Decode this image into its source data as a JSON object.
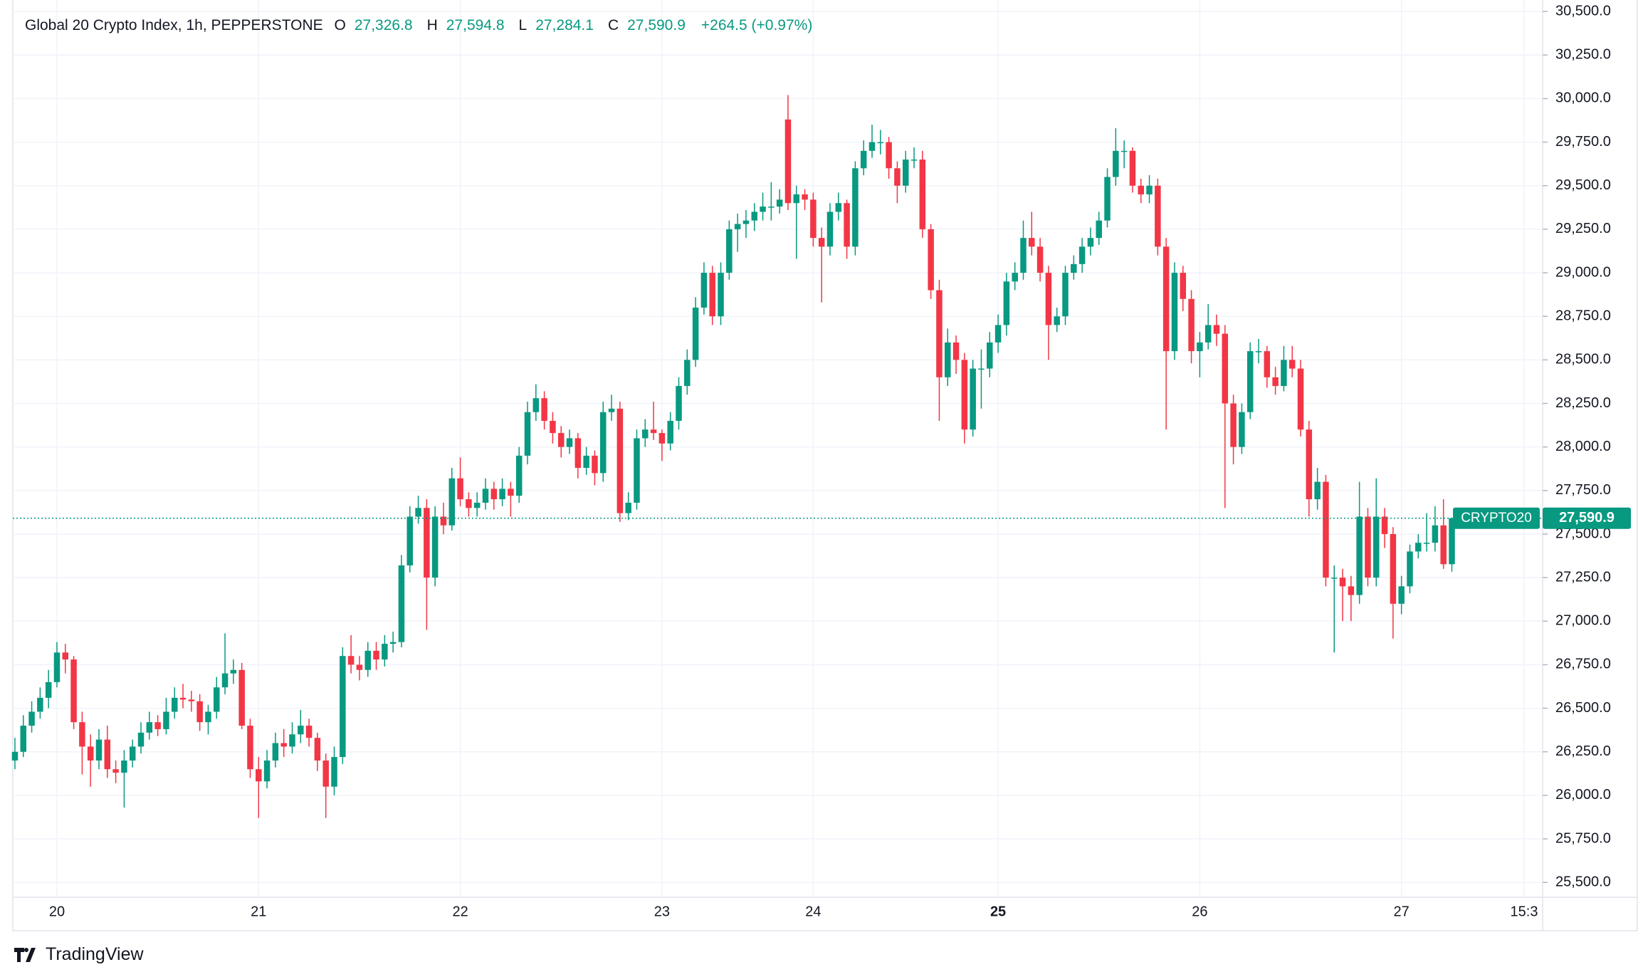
{
  "chart_data": {
    "type": "candlestick",
    "title": "Global 20 Crypto Index, 1h, PEPPERSTONE",
    "ohlc_legend": [
      {
        "key": "O",
        "label": "27,326.8"
      },
      {
        "key": "H",
        "label": "27,594.8"
      },
      {
        "key": "L",
        "label": "27,284.1"
      },
      {
        "key": "C",
        "label": "27,590.9"
      }
    ],
    "change_label": "+264.5 (+0.97%)",
    "price_tag": {
      "name": "CRYPTO20",
      "label": "27,590.9"
    },
    "brand": "TradingView",
    "up_color": "#089981",
    "down_color": "#f23645",
    "grid": true,
    "xlim": [
      -0.25,
      181.8
    ],
    "xticks": [
      {
        "value": 5,
        "label": "20"
      },
      {
        "value": 29,
        "label": "21"
      },
      {
        "value": 53,
        "label": "22"
      },
      {
        "value": 77,
        "label": "23"
      },
      {
        "value": 95,
        "label": "24"
      },
      {
        "value": 117,
        "label": "25",
        "bold": true
      },
      {
        "value": 141,
        "label": "26"
      },
      {
        "value": 165,
        "label": "27"
      },
      {
        "value": 179.6,
        "label": "15:3"
      }
    ],
    "ylim": [
      25415,
      30566
    ],
    "yticks": [
      {
        "value": 25500,
        "label": "25,500.0"
      },
      {
        "value": 25750,
        "label": "25,750.0"
      },
      {
        "value": 26000,
        "label": "26,000.0"
      },
      {
        "value": 26250,
        "label": "26,250.0"
      },
      {
        "value": 26500,
        "label": "26,500.0"
      },
      {
        "value": 26750,
        "label": "26,750.0"
      },
      {
        "value": 27000,
        "label": "27,000.0"
      },
      {
        "value": 27250,
        "label": "27,250.0"
      },
      {
        "value": 27500,
        "label": "27,500.0"
      },
      {
        "value": 27750,
        "label": "27,750.0"
      },
      {
        "value": 28000,
        "label": "28,000.0"
      },
      {
        "value": 28250,
        "label": "28,250.0"
      },
      {
        "value": 28500,
        "label": "28,500.0"
      },
      {
        "value": 28750,
        "label": "28,750.0"
      },
      {
        "value": 29000,
        "label": "29,000.0"
      },
      {
        "value": 29250,
        "label": "29,250.0"
      },
      {
        "value": 29500,
        "label": "29,500.0"
      },
      {
        "value": 29750,
        "label": "29,750.0"
      },
      {
        "value": 30000,
        "label": "30,000.0"
      },
      {
        "value": 30250,
        "label": "30,250.0"
      },
      {
        "value": 30500,
        "label": "30,500.0"
      }
    ],
    "candles": [
      [
        26200,
        26330,
        26150,
        26250
      ],
      [
        26250,
        26460,
        26220,
        26400
      ],
      [
        26400,
        26540,
        26360,
        26480
      ],
      [
        26480,
        26620,
        26440,
        26560
      ],
      [
        26560,
        26720,
        26500,
        26650
      ],
      [
        26650,
        26880,
        26620,
        26820
      ],
      [
        26820,
        26870,
        26700,
        26780
      ],
      [
        26780,
        26800,
        26380,
        26420
      ],
      [
        26420,
        26480,
        26120,
        26280
      ],
      [
        26280,
        26350,
        26050,
        26200
      ],
      [
        26200,
        26380,
        26150,
        26320
      ],
      [
        26320,
        26400,
        26100,
        26150
      ],
      [
        26150,
        26200,
        26070,
        26130
      ],
      [
        26130,
        26260,
        25930,
        26200
      ],
      [
        26200,
        26320,
        26160,
        26280
      ],
      [
        26280,
        26420,
        26240,
        26360
      ],
      [
        26360,
        26480,
        26320,
        26420
      ],
      [
        26420,
        26460,
        26340,
        26380
      ],
      [
        26380,
        26560,
        26350,
        26480
      ],
      [
        26480,
        26620,
        26440,
        26560
      ],
      [
        26560,
        26640,
        26500,
        26550
      ],
      [
        26550,
        26600,
        26480,
        26540
      ],
      [
        26540,
        26580,
        26370,
        26420
      ],
      [
        26420,
        26520,
        26350,
        26480
      ],
      [
        26480,
        26680,
        26440,
        26620
      ],
      [
        26620,
        26930,
        26580,
        26700
      ],
      [
        26700,
        26780,
        26640,
        26720
      ],
      [
        26720,
        26760,
        26380,
        26400
      ],
      [
        26400,
        26440,
        26100,
        26150
      ],
      [
        26150,
        26220,
        25870,
        26080
      ],
      [
        26080,
        26260,
        26040,
        26200
      ],
      [
        26200,
        26360,
        26160,
        26300
      ],
      [
        26300,
        26380,
        26220,
        26280
      ],
      [
        26280,
        26420,
        26240,
        26350
      ],
      [
        26350,
        26490,
        26300,
        26400
      ],
      [
        26400,
        26440,
        26280,
        26330
      ],
      [
        26330,
        26360,
        26140,
        26200
      ],
      [
        26200,
        26240,
        25870,
        26050
      ],
      [
        26050,
        26280,
        26000,
        26220
      ],
      [
        26220,
        26850,
        26180,
        26800
      ],
      [
        26800,
        26920,
        26700,
        26750
      ],
      [
        26750,
        26800,
        26660,
        26720
      ],
      [
        26720,
        26880,
        26680,
        26830
      ],
      [
        26830,
        26880,
        26720,
        26780
      ],
      [
        26780,
        26920,
        26740,
        26870
      ],
      [
        26870,
        26940,
        26820,
        26880
      ],
      [
        26880,
        27380,
        26850,
        27320
      ],
      [
        27320,
        27660,
        27280,
        27600
      ],
      [
        27600,
        27720,
        27560,
        27650
      ],
      [
        27650,
        27700,
        26950,
        27250
      ],
      [
        27250,
        27660,
        27200,
        27600
      ],
      [
        27600,
        27680,
        27500,
        27550
      ],
      [
        27550,
        27880,
        27520,
        27820
      ],
      [
        27820,
        27940,
        27660,
        27700
      ],
      [
        27700,
        27740,
        27600,
        27650
      ],
      [
        27650,
        27740,
        27600,
        27680
      ],
      [
        27680,
        27820,
        27640,
        27760
      ],
      [
        27760,
        27800,
        27640,
        27700
      ],
      [
        27700,
        27820,
        27660,
        27760
      ],
      [
        27760,
        27800,
        27600,
        27720
      ],
      [
        27720,
        28000,
        27680,
        27950
      ],
      [
        27950,
        28260,
        27900,
        28200
      ],
      [
        28200,
        28360,
        28150,
        28280
      ],
      [
        28280,
        28320,
        28100,
        28150
      ],
      [
        28150,
        28200,
        28020,
        28080
      ],
      [
        28080,
        28120,
        27940,
        28000
      ],
      [
        28000,
        28100,
        27960,
        28050
      ],
      [
        28050,
        28080,
        27820,
        27880
      ],
      [
        27880,
        28000,
        27840,
        27950
      ],
      [
        27950,
        27980,
        27780,
        27850
      ],
      [
        27850,
        28260,
        27800,
        28200
      ],
      [
        28200,
        28300,
        28150,
        28220
      ],
      [
        28220,
        28260,
        27570,
        27620
      ],
      [
        27620,
        27740,
        27580,
        27680
      ],
      [
        27680,
        28100,
        27640,
        28050
      ],
      [
        28050,
        28160,
        28000,
        28100
      ],
      [
        28100,
        28260,
        28040,
        28080
      ],
      [
        28080,
        28100,
        27920,
        28020
      ],
      [
        28020,
        28200,
        27980,
        28150
      ],
      [
        28150,
        28400,
        28100,
        28350
      ],
      [
        28350,
        28560,
        28300,
        28500
      ],
      [
        28500,
        28860,
        28460,
        28800
      ],
      [
        28800,
        29060,
        28760,
        29000
      ],
      [
        29000,
        29040,
        28700,
        28750
      ],
      [
        28750,
        29060,
        28700,
        29000
      ],
      [
        29000,
        29300,
        28960,
        29250
      ],
      [
        29250,
        29340,
        29120,
        29280
      ],
      [
        29280,
        29360,
        29200,
        29300
      ],
      [
        29300,
        29400,
        29240,
        29350
      ],
      [
        29350,
        29460,
        29300,
        29380
      ],
      [
        29380,
        29520,
        29300,
        29380
      ],
      [
        29380,
        29480,
        29340,
        29420
      ],
      [
        29880,
        30020,
        29360,
        29400
      ],
      [
        29400,
        29500,
        29080,
        29450
      ],
      [
        29450,
        29480,
        29360,
        29420
      ],
      [
        29420,
        29460,
        29150,
        29200
      ],
      [
        29200,
        29260,
        28830,
        29150
      ],
      [
        29150,
        29400,
        29100,
        29350
      ],
      [
        29350,
        29460,
        29300,
        29400
      ],
      [
        29400,
        29420,
        29080,
        29150
      ],
      [
        29150,
        29640,
        29100,
        29600
      ],
      [
        29600,
        29760,
        29560,
        29700
      ],
      [
        29700,
        29850,
        29660,
        29750
      ],
      [
        29750,
        29820,
        29680,
        29750
      ],
      [
        29750,
        29780,
        29540,
        29600
      ],
      [
        29600,
        29640,
        29400,
        29500
      ],
      [
        29500,
        29700,
        29460,
        29650
      ],
      [
        29650,
        29720,
        29600,
        29650
      ],
      [
        29650,
        29700,
        29200,
        29250
      ],
      [
        29250,
        29280,
        28850,
        28900
      ],
      [
        28900,
        28960,
        28150,
        28400
      ],
      [
        28400,
        28680,
        28350,
        28600
      ],
      [
        28600,
        28640,
        28420,
        28500
      ],
      [
        28500,
        28540,
        28020,
        28100
      ],
      [
        28100,
        28500,
        28060,
        28450
      ],
      [
        28450,
        28560,
        28220,
        28450
      ],
      [
        28450,
        28660,
        28400,
        28600
      ],
      [
        28600,
        28760,
        28540,
        28700
      ],
      [
        28700,
        29000,
        28640,
        28950
      ],
      [
        28950,
        29060,
        28900,
        29000
      ],
      [
        29000,
        29300,
        28960,
        29200
      ],
      [
        29200,
        29350,
        29100,
        29150
      ],
      [
        29150,
        29200,
        28950,
        29000
      ],
      [
        29000,
        29040,
        28500,
        28700
      ],
      [
        28700,
        28800,
        28660,
        28750
      ],
      [
        28750,
        29040,
        28700,
        29000
      ],
      [
        29000,
        29100,
        28960,
        29050
      ],
      [
        29050,
        29200,
        29000,
        29150
      ],
      [
        29150,
        29260,
        29100,
        29200
      ],
      [
        29200,
        29350,
        29160,
        29300
      ],
      [
        29300,
        29600,
        29260,
        29550
      ],
      [
        29550,
        29830,
        29500,
        29700
      ],
      [
        29700,
        29760,
        29600,
        29700
      ],
      [
        29700,
        29720,
        29460,
        29500
      ],
      [
        29500,
        29540,
        29400,
        29450
      ],
      [
        29450,
        29560,
        29400,
        29500
      ],
      [
        29500,
        29540,
        29100,
        29150
      ],
      [
        29150,
        29200,
        28100,
        28550
      ],
      [
        28550,
        29060,
        28500,
        29000
      ],
      [
        29000,
        29040,
        28780,
        28850
      ],
      [
        28850,
        28900,
        28480,
        28550
      ],
      [
        28550,
        28660,
        28400,
        28600
      ],
      [
        28600,
        28820,
        28560,
        28700
      ],
      [
        28700,
        28760,
        28580,
        28650
      ],
      [
        28650,
        28700,
        27650,
        28250
      ],
      [
        28250,
        28300,
        27900,
        28000
      ],
      [
        28000,
        28250,
        27960,
        28200
      ],
      [
        28200,
        28600,
        28160,
        28550
      ],
      [
        28550,
        28620,
        28480,
        28550
      ],
      [
        28550,
        28580,
        28340,
        28400
      ],
      [
        28400,
        28460,
        28300,
        28350
      ],
      [
        28350,
        28580,
        28320,
        28500
      ],
      [
        28500,
        28580,
        28400,
        28450
      ],
      [
        28450,
        28500,
        28060,
        28100
      ],
      [
        28100,
        28150,
        27600,
        27700
      ],
      [
        27700,
        27880,
        27640,
        27800
      ],
      [
        27800,
        27840,
        27200,
        27250
      ],
      [
        27250,
        27320,
        26820,
        27250
      ],
      [
        27250,
        27300,
        27000,
        27200
      ],
      [
        27200,
        27260,
        27000,
        27150
      ],
      [
        27150,
        27800,
        27100,
        27600
      ],
      [
        27600,
        27650,
        27200,
        27250
      ],
      [
        27250,
        27820,
        27200,
        27600
      ],
      [
        27600,
        27650,
        27420,
        27500
      ],
      [
        27500,
        27540,
        26900,
        27100
      ],
      [
        27100,
        27260,
        27040,
        27200
      ],
      [
        27200,
        27440,
        27160,
        27400
      ],
      [
        27400,
        27500,
        27360,
        27450
      ],
      [
        27450,
        27620,
        27400,
        27450
      ],
      [
        27450,
        27660,
        27400,
        27550
      ],
      [
        27550,
        27700,
        27300,
        27326.8
      ],
      [
        27326.8,
        27594.8,
        27284.1,
        27590.9
      ]
    ]
  }
}
